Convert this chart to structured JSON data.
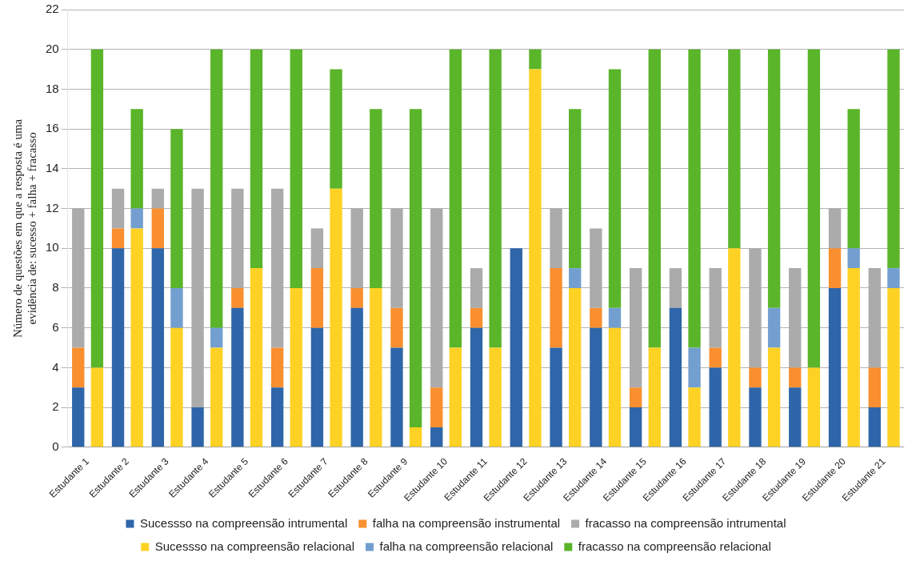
{
  "chart_data": {
    "type": "bar",
    "ylabel": "Número de questões em que a resposta é uma evidência de: sucesso + falha + fracasso",
    "categories": [
      "Estudante 1",
      "Estudante 2",
      "Estudante 3",
      "Estudante 4",
      "Estudante 5",
      "Estudante 6",
      "Estudante 7",
      "Estudante 8",
      "Estudante 9",
      "Estudante 10",
      "Estudante 11",
      "Estudante 12",
      "Estudante 13",
      "Estudante 14",
      "Estudante 15",
      "Estudante 16",
      "Estudante 17",
      "Estudante 18",
      "Estudante 19",
      "Estudante 20",
      "Estudante 21"
    ],
    "series": [
      {
        "name": "Sucessso na compreensão intrumental",
        "color": "#2f66a9",
        "base": [
          0,
          0,
          0,
          0,
          0,
          0,
          0,
          0,
          0,
          0,
          0,
          0,
          0,
          0,
          0,
          0,
          0,
          0,
          0,
          0,
          0
        ],
        "values": [
          3,
          10,
          10,
          2,
          7,
          3,
          6,
          7,
          5,
          1,
          6,
          10,
          5,
          6,
          2,
          7,
          4,
          3,
          3,
          8,
          2
        ]
      },
      {
        "name": "falha na compreensão instrumental",
        "color": "#f98f2f",
        "base": [
          3,
          10,
          10,
          null,
          7,
          3,
          6,
          7,
          5,
          1,
          6,
          null,
          5,
          6,
          2,
          null,
          4,
          3,
          3,
          8,
          2
        ],
        "values": [
          2,
          1,
          2,
          null,
          1,
          2,
          3,
          1,
          2,
          2,
          1,
          null,
          4,
          1,
          1,
          null,
          1,
          1,
          1,
          2,
          2
        ]
      },
      {
        "name": "fracasso na compreensão intrumental",
        "color": "#ababab",
        "base": [
          5,
          11,
          12,
          2,
          8,
          5,
          9,
          8,
          7,
          3,
          7,
          null,
          9,
          7,
          3,
          7,
          5,
          4,
          4,
          10,
          4
        ],
        "values": [
          7,
          2,
          1,
          11,
          5,
          8,
          2,
          4,
          5,
          9,
          2,
          null,
          3,
          4,
          6,
          2,
          4,
          6,
          5,
          2,
          5
        ]
      },
      {
        "name": "Sucessso na compreensão relacional",
        "color": "#fdd224",
        "base": [
          0,
          0,
          0,
          0,
          0,
          0,
          0,
          0,
          0,
          0,
          0,
          0,
          0,
          0,
          0,
          0,
          0,
          0,
          0,
          0,
          0
        ],
        "values": [
          4,
          11,
          6,
          5,
          9,
          8,
          13,
          8,
          1,
          5,
          5,
          19,
          8,
          6,
          5,
          3,
          10,
          5,
          4,
          9,
          8
        ]
      },
      {
        "name": "falha na compreensão relacional",
        "color": "#729fcf",
        "base": [
          null,
          11,
          6,
          5,
          null,
          null,
          null,
          null,
          null,
          null,
          null,
          null,
          8,
          6,
          null,
          3,
          null,
          5,
          null,
          9,
          8
        ],
        "values": [
          null,
          1,
          2,
          1,
          null,
          null,
          null,
          null,
          null,
          null,
          null,
          null,
          1,
          1,
          null,
          2,
          null,
          2,
          null,
          1,
          1
        ]
      },
      {
        "name": "fracasso na compreensão relacional",
        "color": "#5ab52a",
        "base": [
          4,
          12,
          8,
          6,
          9,
          8,
          13,
          8,
          1,
          5,
          5,
          19,
          9,
          7,
          5,
          5,
          10,
          7,
          4,
          10,
          9
        ],
        "values": [
          16,
          5,
          8,
          14,
          11,
          12,
          6,
          9,
          16,
          15,
          15,
          1,
          8,
          12,
          15,
          15,
          10,
          13,
          16,
          7,
          11
        ]
      }
    ],
    "ylim": [
      0,
      22
    ],
    "yticks": [
      0,
      2,
      4,
      6,
      8,
      10,
      12,
      14,
      16,
      18,
      20,
      22
    ],
    "grid": "y",
    "legend": "bottom"
  }
}
